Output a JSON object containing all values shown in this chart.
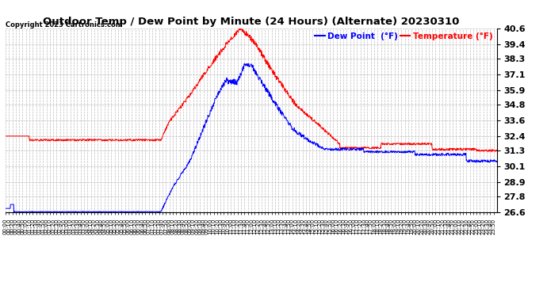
{
  "title": "Outdoor Temp / Dew Point by Minute (24 Hours) (Alternate) 20230310",
  "copyright": "Copyright 2023 Cartronics.com",
  "legend_dew": "Dew Point  (°F)",
  "legend_temp": "Temperature (°F)",
  "dew_color": "blue",
  "temp_color": "red",
  "bg_color": "#ffffff",
  "grid_color": "#bbbbbb",
  "ylim": [
    26.6,
    40.6
  ],
  "yticks": [
    26.6,
    27.8,
    28.9,
    30.1,
    31.3,
    32.4,
    33.6,
    34.8,
    35.9,
    37.1,
    38.3,
    39.4,
    40.6
  ],
  "total_minutes": 1440,
  "xtick_labels_every": 10,
  "figsize": [
    6.9,
    3.75
  ],
  "dpi": 100
}
